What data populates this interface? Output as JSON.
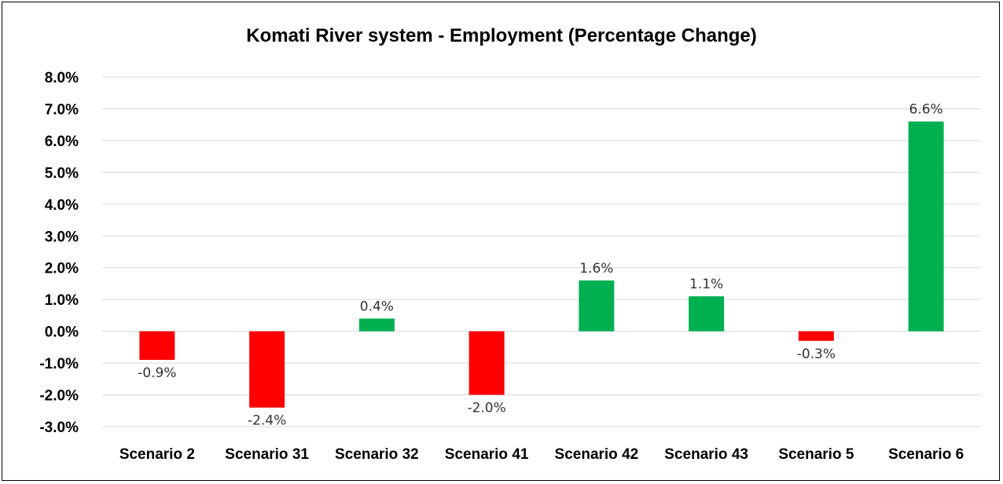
{
  "chart_data": {
    "type": "bar",
    "title": "Komati River system - Employment (Percentage Change)",
    "xlabel": "",
    "ylabel": "",
    "categories": [
      "Scenario 2",
      "Scenario 31",
      "Scenario 32",
      "Scenario 41",
      "Scenario 42",
      "Scenario 43",
      "Scenario 5",
      "Scenario 6"
    ],
    "values": [
      -0.9,
      -2.4,
      0.4,
      -2.0,
      1.6,
      1.1,
      -0.3,
      6.6
    ],
    "value_labels": [
      "-0.9%",
      "-2.4%",
      "0.4%",
      "-2.0%",
      "1.6%",
      "1.1%",
      "-0.3%",
      "6.6%"
    ],
    "ylim": [
      -3.0,
      8.0
    ],
    "yticks": [
      8.0,
      7.0,
      6.0,
      5.0,
      4.0,
      3.0,
      2.0,
      1.0,
      0.0,
      -1.0,
      -2.0,
      -3.0
    ],
    "ytick_labels": [
      "8.0%",
      "7.0%",
      "6.0%",
      "5.0%",
      "4.0%",
      "3.0%",
      "2.0%",
      "1.0%",
      "0.0%",
      "-1.0%",
      "-2.0%",
      "-3.0%"
    ],
    "grid": true,
    "legend": "none",
    "colors": {
      "positive": "#00B050",
      "negative": "#FF0000",
      "gridline": "#D9D9D9"
    }
  }
}
